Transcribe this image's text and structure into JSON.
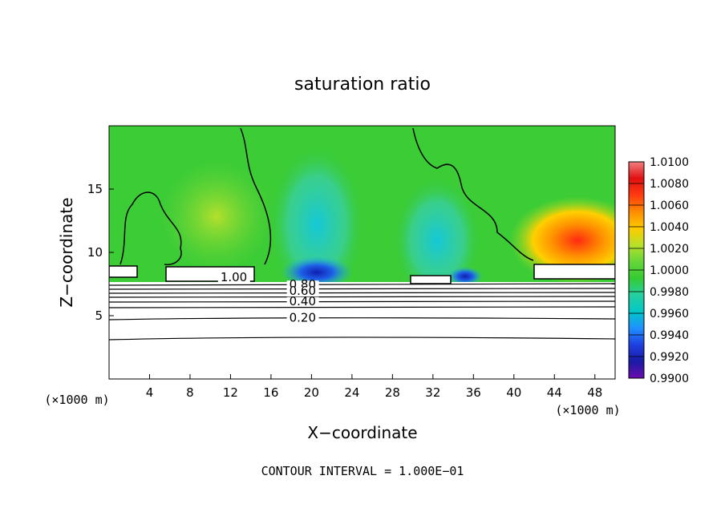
{
  "chart_data": {
    "type": "heatmap",
    "title": "saturation ratio",
    "xlabel": "X−coordinate",
    "ylabel": "Z−coordinate",
    "x_unit_left": "(×1000 m)",
    "x_unit_right": "(×1000 m)",
    "xlim": [
      0,
      50
    ],
    "ylim": [
      0,
      20
    ],
    "xticks": [
      4,
      8,
      12,
      16,
      20,
      24,
      28,
      32,
      36,
      40,
      44,
      48
    ],
    "yticks": [
      5,
      10,
      15
    ],
    "colorbar": {
      "min": 0.99,
      "max": 1.01,
      "labels": [
        "1.0100",
        "1.0080",
        "1.0060",
        "1.0040",
        "1.0020",
        "1.0000",
        "0.9980",
        "0.9960",
        "0.9940",
        "0.9920",
        "0.9900"
      ],
      "colors": [
        "#6a0dad",
        "#1a1aa6",
        "#1f3fe0",
        "#1e90ff",
        "#00c8c8",
        "#26d0a0",
        "#33cc33",
        "#66d63a",
        "#b8e02a",
        "#ffcc00",
        "#ff8c00",
        "#ff3a10",
        "#e01010",
        "#f08080"
      ]
    },
    "contour_labels": [
      {
        "text": "1.00",
        "x": 11.0,
        "z": 7.8
      },
      {
        "text": "0.80",
        "x": 17.8,
        "z": 7.2
      },
      {
        "text": "0.60",
        "x": 17.8,
        "z": 6.7
      },
      {
        "text": "0.40",
        "x": 17.8,
        "z": 5.9
      },
      {
        "text": "0.20",
        "x": 17.8,
        "z": 4.6
      }
    ],
    "contour_levels": [
      0.2,
      0.4,
      0.6,
      0.8,
      1.0
    ],
    "footer": "CONTOUR INTERVAL = 1.000E−01"
  }
}
